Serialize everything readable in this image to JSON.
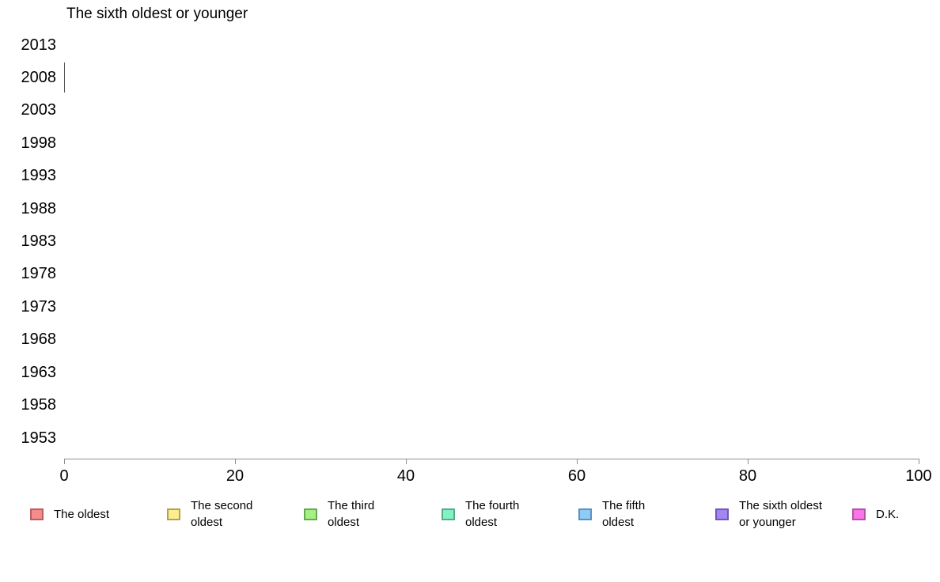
{
  "chart_data": {
    "type": "bar",
    "orientation": "horizontal",
    "title": "The sixth oldest or younger",
    "categories": [
      "2013",
      "2008",
      "2003",
      "1998",
      "1993",
      "1988",
      "1983",
      "1978",
      "1973",
      "1968",
      "1963",
      "1958",
      "1953"
    ],
    "x_range": [
      0,
      100
    ],
    "x_ticks": [
      0,
      20,
      40,
      60,
      80,
      100
    ],
    "grid": false,
    "legend_position": "bottom",
    "bars": [
      {
        "category": "2008",
        "value": 0
      }
    ],
    "legend": [
      {
        "label": "The oldest",
        "color": "#F48C8C",
        "border_color": "#BD5E5E"
      },
      {
        "label": "The second oldest",
        "color": "#FDED8D",
        "border_color": "#ABA455"
      },
      {
        "label": "The third oldest",
        "color": "#A3F183",
        "border_color": "#67A94F"
      },
      {
        "label": "The fourth oldest",
        "color": "#83F2C3",
        "border_color": "#57AB8B"
      },
      {
        "label": "The fifth oldest",
        "color": "#8CCCF7",
        "border_color": "#5F8FBF"
      },
      {
        "label": "The sixth oldest or younger",
        "color": "#A386F2",
        "border_color": "#6F58B8"
      },
      {
        "label": "D.K.",
        "color": "#F973E9",
        "border_color": "#B254A6"
      }
    ]
  }
}
